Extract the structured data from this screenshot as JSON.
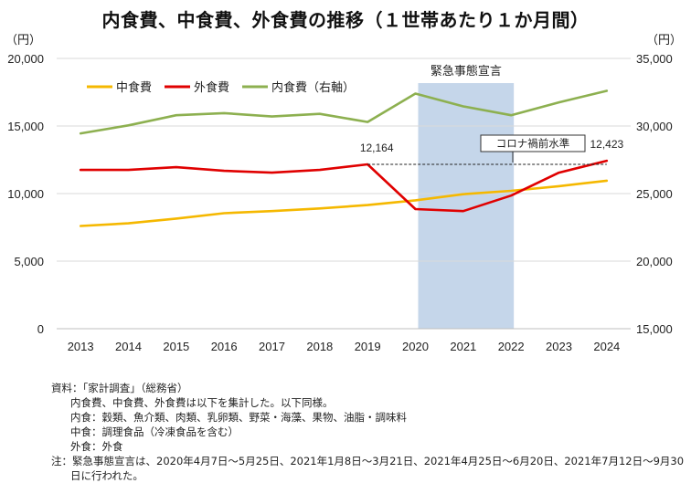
{
  "chart_data": {
    "type": "line",
    "title": "内食費、中食費、外食費の推移（１世帯あたり１か月間）",
    "x": [
      "2013",
      "2014",
      "2015",
      "2016",
      "2017",
      "2018",
      "2019",
      "2020",
      "2021",
      "2022",
      "2023",
      "2024"
    ],
    "y_left": {
      "unit": "（円）",
      "ylim": [
        0,
        20000
      ],
      "ticks": [
        "0",
        "5,000",
        "10,000",
        "15,000",
        "20,000"
      ],
      "tick_values": [
        0,
        5000,
        10000,
        15000,
        20000
      ]
    },
    "y_right": {
      "unit": "（円）",
      "ylim": [
        15000,
        35000
      ],
      "ticks": [
        "15,000",
        "20,000",
        "25,000",
        "30,000",
        "35,000"
      ],
      "tick_values": [
        15000,
        20000,
        25000,
        30000,
        35000
      ]
    },
    "series": [
      {
        "name": "中食費",
        "color": "#f5b800",
        "axis": "left",
        "values": [
          7600,
          7800,
          8150,
          8550,
          8700,
          8900,
          9150,
          9500,
          9950,
          10200,
          10550,
          10950
        ]
      },
      {
        "name": "外食費",
        "color": "#e00000",
        "axis": "left",
        "values": [
          11750,
          11750,
          11950,
          11680,
          11550,
          11750,
          12164,
          8850,
          8700,
          9850,
          11550,
          12423
        ]
      },
      {
        "name": "内食費（右軸）",
        "color": "#8db050",
        "axis": "right",
        "values": [
          29450,
          30050,
          30800,
          30950,
          30700,
          30900,
          30300,
          32400,
          31450,
          30800,
          31750,
          32600
        ]
      }
    ],
    "shaded_region": {
      "label": "緊急事態宣言",
      "from": "2020",
      "to": "2022",
      "color": "#c5d6ea"
    },
    "annotations": [
      {
        "text": "12,164",
        "x": "2019",
        "y": 12164
      },
      {
        "text": "12,423",
        "x": "2024",
        "y": 12423
      },
      {
        "text": "コロナ禍前水準",
        "x": "2022",
        "y": 12164
      }
    ],
    "reference_line": {
      "y": 12164,
      "from": "2019",
      "to": "2024",
      "style": "dashed"
    },
    "legend_position": "top-left",
    "grid": true
  },
  "notes": {
    "source": "資料：「家計調査」（総務省）",
    "line1": "内食費、中食費、外食費は以下を集計した。以下同様。",
    "line2": "内食：穀類、魚介類、肉類、乳卵類、野菜・海藻、果物、油脂・調味料",
    "line3": "中食：調理食品（冷凍食品を含む）",
    "line4": "外食：外食",
    "note": "注：緊急事態宣言は、2020年4月7日～5月25日、2021年1月8日～3月21日、2021年4月25日～6月20日、2021年7月12日～9月30日に行われた。"
  }
}
